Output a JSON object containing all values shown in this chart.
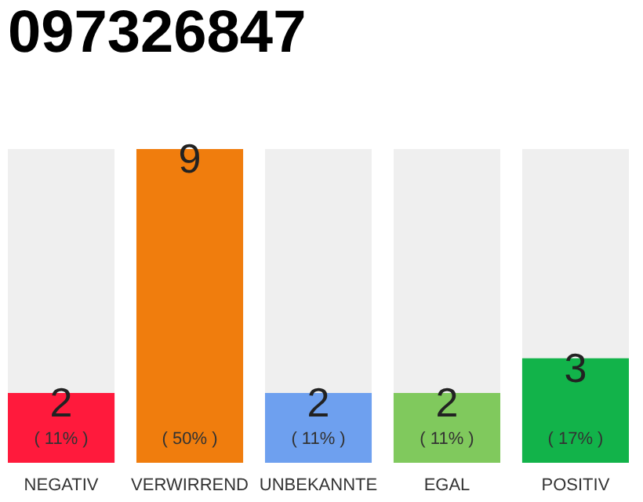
{
  "chart_data": {
    "type": "bar",
    "title": "097326847",
    "categories": [
      "NEGATIV",
      "VERWIRREND",
      "UNBEKANNTE",
      "EGAL",
      "POSITIV"
    ],
    "values": [
      2,
      9,
      2,
      2,
      3
    ],
    "colors": [
      "#ff1a3c",
      "#f07d0d",
      "#6ea0ef",
      "#80c95d",
      "#12b34a"
    ],
    "data_labels": true,
    "annotations": [
      "( 11% )",
      "( 50% )",
      "( 11% )",
      "( 11% )",
      "( 17% )"
    ]
  }
}
